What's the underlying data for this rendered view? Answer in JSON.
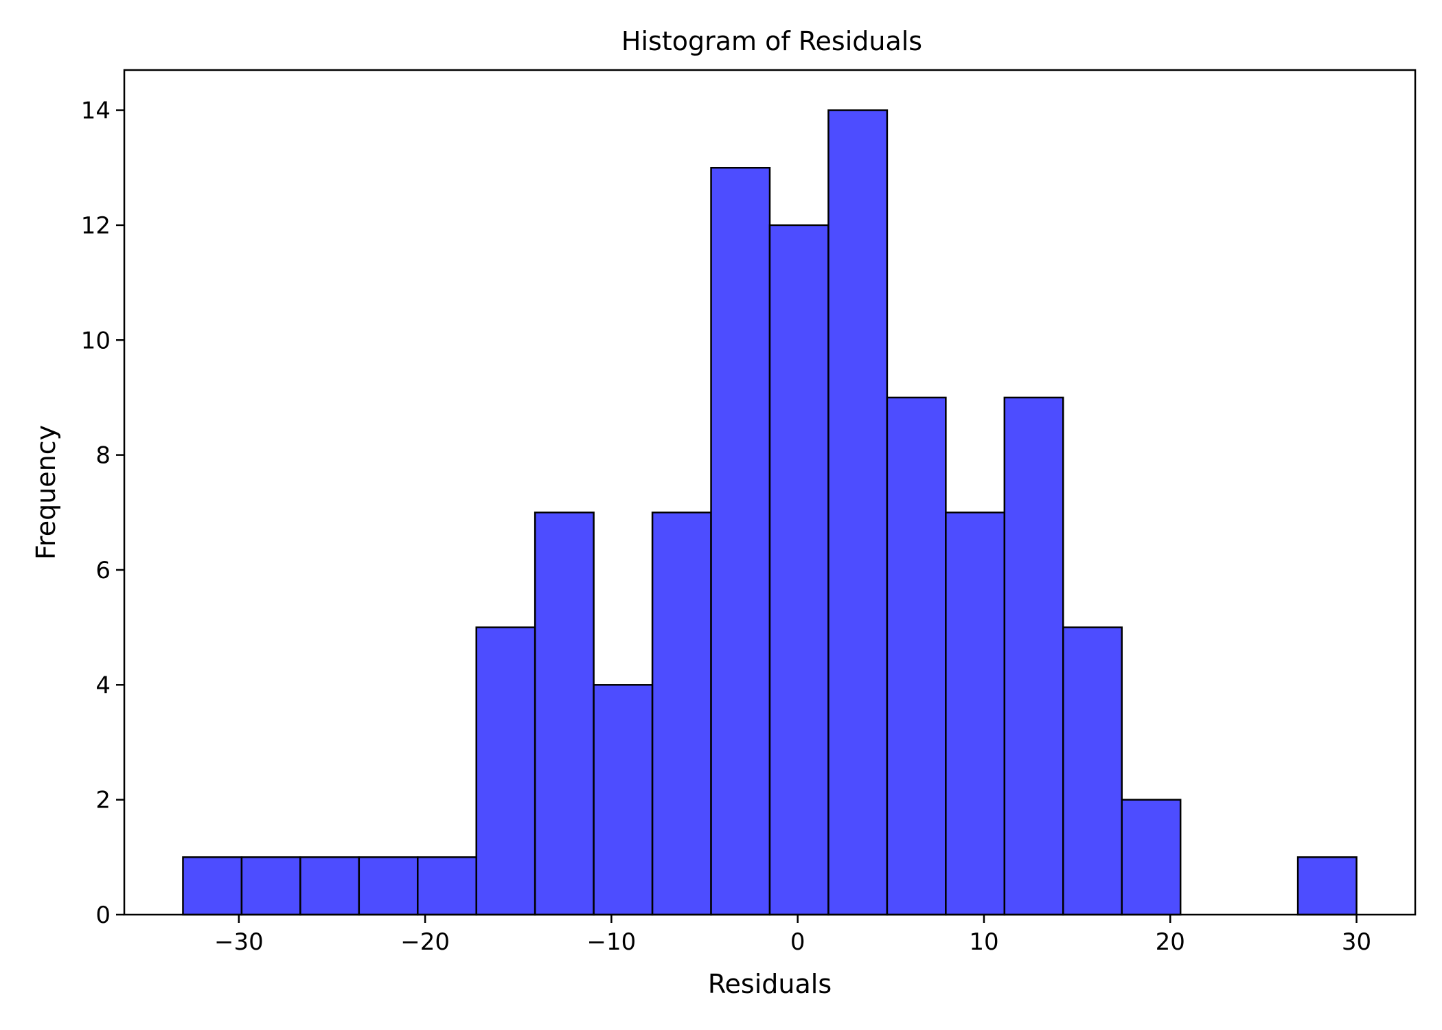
{
  "chart_data": {
    "type": "bar",
    "title": "Histogram of Residuals",
    "xlabel": "Residuals",
    "ylabel": "Frequency",
    "bin_edges": [
      -33.0,
      -29.85,
      -26.7,
      -23.55,
      -20.4,
      -17.25,
      -14.1,
      -10.95,
      -7.8,
      -4.65,
      -1.5,
      1.65,
      4.8,
      7.95,
      11.1,
      14.25,
      17.4,
      20.55,
      23.7,
      26.85,
      30.0
    ],
    "values": [
      1,
      1,
      1,
      1,
      1,
      5,
      7,
      4,
      7,
      13,
      12,
      14,
      9,
      7,
      9,
      5,
      2,
      0,
      0,
      1
    ],
    "xlim": [
      -36.15,
      33.15
    ],
    "ylim": [
      0,
      14.7
    ],
    "xticks": [
      -30,
      -20,
      -10,
      0,
      10,
      20,
      30
    ],
    "xtick_labels": [
      "−30",
      "−20",
      "−10",
      "0",
      "10",
      "20",
      "30"
    ],
    "yticks": [
      0,
      2,
      4,
      6,
      8,
      10,
      12,
      14
    ],
    "ytick_labels": [
      "0",
      "2",
      "4",
      "6",
      "8",
      "10",
      "12",
      "14"
    ],
    "bar_color": "#4d4dff",
    "edge_color": "#000000",
    "grid": false,
    "legend": "none"
  }
}
